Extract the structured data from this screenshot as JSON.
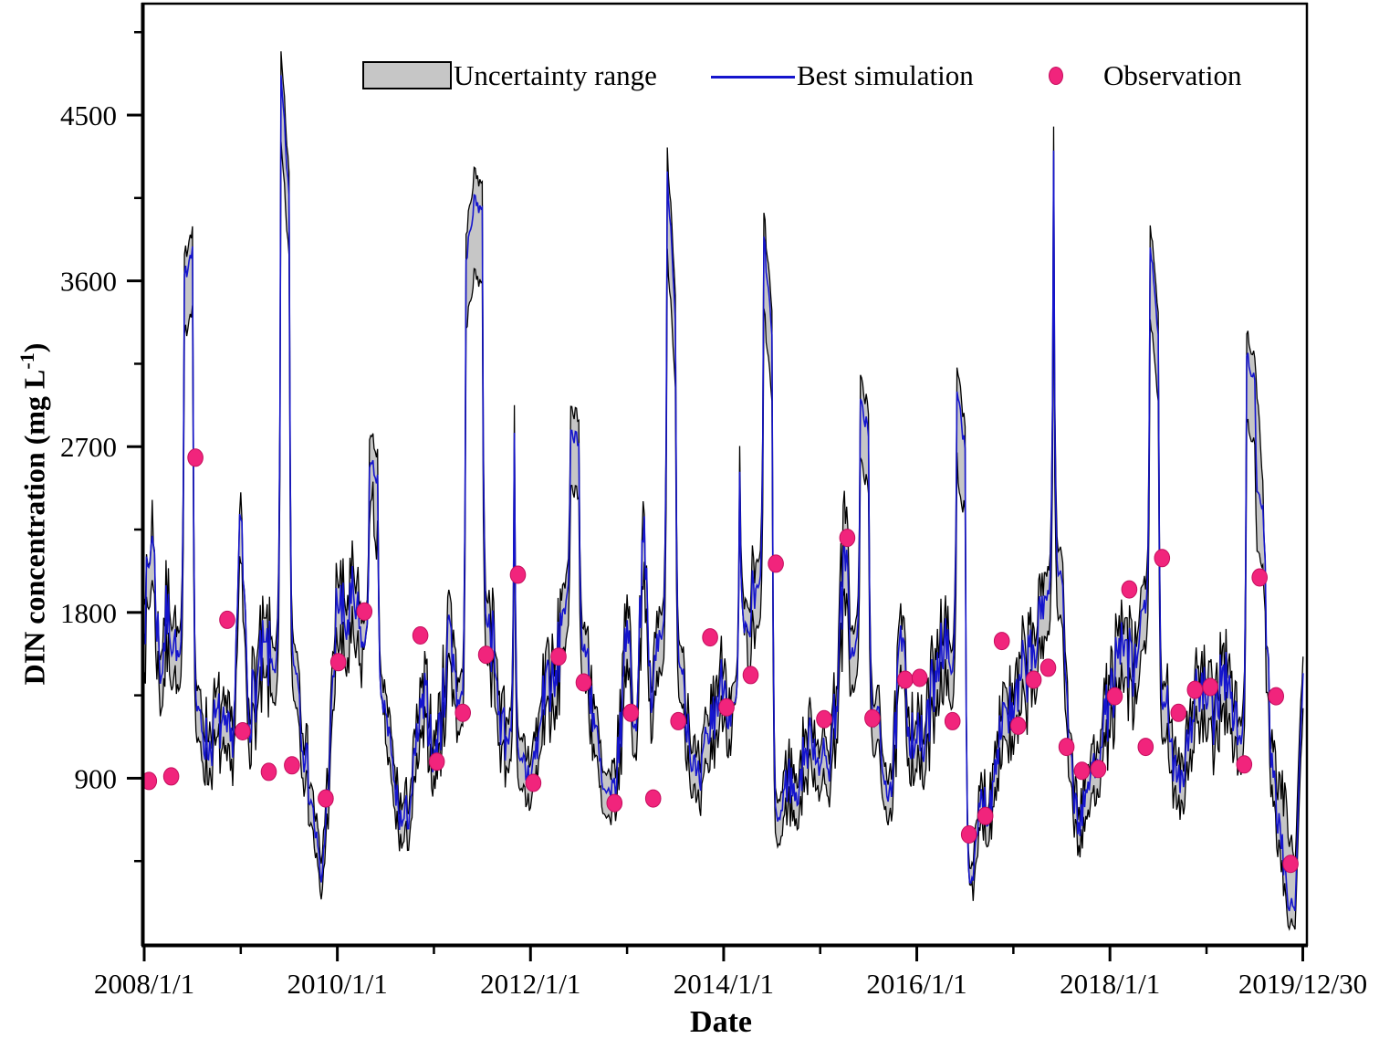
{
  "chart_data": {
    "type": "line",
    "title": "",
    "xlabel": "Date",
    "ylabel": {
      "prefix": "DIN concentration (mg L",
      "superscript": "-1",
      "suffix": ")"
    },
    "legend_position": "top",
    "grid": false,
    "xlim": [
      2008.0,
      2020.03
    ],
    "ylim": [
      0,
      5100
    ],
    "x_ticks": [
      {
        "t": 2008.0,
        "label": "2008/1/1"
      },
      {
        "t": 2010.0,
        "label": "2010/1/1"
      },
      {
        "t": 2012.0,
        "label": "2012/1/1"
      },
      {
        "t": 2014.0,
        "label": "2014/1/1"
      },
      {
        "t": 2016.0,
        "label": "2016/1/1"
      },
      {
        "t": 2018.0,
        "label": "2018/1/1"
      },
      {
        "t": 2019.997,
        "label": "2019/12/30"
      }
    ],
    "x_minor_ticks": [
      2009,
      2011,
      2013,
      2015,
      2017,
      2019
    ],
    "y_ticks": [
      900,
      1800,
      2700,
      3600,
      4500
    ],
    "y_minor_ticks": [
      450,
      1350,
      2250,
      3150,
      4050,
      4950
    ],
    "legend": [
      {
        "label": "Uncertainty range",
        "type": "band",
        "fill": "#c6c6c6",
        "stroke": "#000000"
      },
      {
        "label": "Best simulation",
        "type": "line",
        "color": "#1515cd"
      },
      {
        "label": "Observation",
        "type": "point",
        "color": "#f1247c"
      }
    ],
    "series_monthly": {
      "t_start": 2008.0,
      "t_step_years": 0.0833333,
      "units": "mg L-1",
      "best_simulation": [
        1750,
        2250,
        1450,
        1850,
        1550,
        3620,
        3800,
        1250,
        1030,
        1240,
        1140,
        1060,
        2300,
        1250,
        1420,
        1600,
        1500,
        4700,
        4060,
        1500,
        1020,
        720,
        320,
        950,
        1880,
        1700,
        1860,
        1620,
        2600,
        2540,
        1280,
        880,
        640,
        740,
        1120,
        1350,
        1020,
        1240,
        1780,
        1320,
        3700,
        4050,
        3990,
        1750,
        1280,
        1120,
        2780,
        980,
        900,
        1120,
        1500,
        1340,
        1820,
        2800,
        2730,
        1580,
        1180,
        820,
        760,
        1010,
        1800,
        1150,
        2250,
        1280,
        1700,
        4200,
        3380,
        1500,
        980,
        840,
        1120,
        1300,
        1420,
        1280,
        2550,
        1700,
        1920,
        3830,
        3310,
        680,
        920,
        800,
        1010,
        1120,
        1000,
        960,
        1320,
        2120,
        1600,
        2950,
        2760,
        1220,
        900,
        860,
        1680,
        1190,
        1120,
        1060,
        1420,
        1700,
        1520,
        3000,
        2700,
        340,
        820,
        700,
        1100,
        1310,
        1200,
        1430,
        1560,
        1620,
        1900,
        4300,
        2000,
        1080,
        620,
        800,
        1000,
        1120,
        1320,
        1520,
        1620,
        1400,
        1820,
        3780,
        3300,
        1280,
        1000,
        920,
        1210,
        1400,
        1300,
        1210,
        1540,
        1310,
        1120,
        3200,
        3060,
        2400,
        950,
        680,
        260,
        180,
        1470
      ],
      "uncertainty_upper": [
        1890,
        2420,
        1580,
        1990,
        1680,
        3730,
        3910,
        1360,
        1130,
        1350,
        1240,
        1170,
        2450,
        1360,
        1540,
        1730,
        1620,
        4830,
        4180,
        1620,
        1120,
        810,
        420,
        1060,
        2020,
        1830,
        2000,
        1750,
        2750,
        2680,
        1390,
        970,
        730,
        830,
        1220,
        1460,
        1120,
        1350,
        1920,
        1440,
        3840,
        4200,
        4130,
        1880,
        1390,
        1230,
        2930,
        1090,
        1000,
        1220,
        1620,
        1450,
        1960,
        2930,
        2860,
        1700,
        1280,
        910,
        860,
        1120,
        1940,
        1260,
        2420,
        1390,
        1830,
        4330,
        3510,
        1620,
        1080,
        940,
        1220,
        1410,
        1540,
        1390,
        2690,
        1830,
        2060,
        3960,
        3440,
        780,
        1020,
        900,
        1110,
        1220,
        1100,
        1060,
        1430,
        2400,
        1720,
        3080,
        2880,
        1330,
        1000,
        960,
        1800,
        1300,
        1220,
        1160,
        1540,
        1830,
        1640,
        3130,
        2820,
        420,
        910,
        790,
        1200,
        1420,
        1300,
        1550,
        1680,
        1740,
        2030,
        4430,
        2130,
        1180,
        700,
        890,
        1100,
        1220,
        1430,
        1640,
        1740,
        1510,
        1950,
        3900,
        3420,
        1390,
        1100,
        1010,
        1310,
        1510,
        1410,
        1310,
        1660,
        1420,
        1220,
        3320,
        3180,
        2520,
        1050,
        900,
        700,
        420,
        1560
      ],
      "uncertainty_lower": [
        1540,
        2010,
        1270,
        1640,
        1370,
        3300,
        3480,
        1080,
        890,
        1090,
        990,
        900,
        2060,
        1090,
        1250,
        1410,
        1320,
        4340,
        3730,
        1310,
        880,
        600,
        230,
        810,
        1660,
        1500,
        1640,
        1430,
        2330,
        2270,
        1110,
        740,
        520,
        610,
        970,
        1180,
        880,
        1080,
        1570,
        1150,
        3330,
        3650,
        3590,
        1540,
        1110,
        960,
        2470,
        820,
        760,
        970,
        1310,
        1160,
        1610,
        2500,
        2440,
        1380,
        1020,
        690,
        620,
        860,
        1590,
        990,
        1990,
        1110,
        1500,
        3780,
        3010,
        1310,
        830,
        700,
        960,
        1120,
        1240,
        1110,
        2270,
        1490,
        1700,
        3440,
        2950,
        540,
        780,
        660,
        860,
        960,
        850,
        810,
        1140,
        1870,
        1400,
        2630,
        2450,
        1050,
        760,
        720,
        1470,
        1020,
        960,
        900,
        1230,
        1490,
        1320,
        2670,
        2390,
        230,
        690,
        580,
        940,
        1130,
        1030,
        1240,
        1360,
        1410,
        1680,
        3860,
        1760,
        910,
        500,
        660,
        830,
        960,
        1140,
        1320,
        1420,
        1210,
        1600,
        3390,
        2940,
        1090,
        840,
        760,
        1040,
        1210,
        1120,
        1030,
        1330,
        1120,
        950,
        2840,
        2710,
        2080,
        790,
        540,
        150,
        80,
        1280
      ]
    },
    "observations": [
      [
        2008.05,
        885
      ],
      [
        2008.28,
        910
      ],
      [
        2008.53,
        2640
      ],
      [
        2008.86,
        1760
      ],
      [
        2009.02,
        1155
      ],
      [
        2009.29,
        935
      ],
      [
        2009.53,
        970
      ],
      [
        2009.88,
        790
      ],
      [
        2010.01,
        1530
      ],
      [
        2010.28,
        1805
      ],
      [
        2010.86,
        1675
      ],
      [
        2011.03,
        990
      ],
      [
        2011.3,
        1255
      ],
      [
        2011.54,
        1570
      ],
      [
        2011.87,
        2005
      ],
      [
        2012.03,
        875
      ],
      [
        2012.29,
        1560
      ],
      [
        2012.55,
        1420
      ],
      [
        2012.87,
        765
      ],
      [
        2013.04,
        1255
      ],
      [
        2013.27,
        790
      ],
      [
        2013.53,
        1210
      ],
      [
        2013.86,
        1665
      ],
      [
        2014.03,
        1285
      ],
      [
        2014.28,
        1460
      ],
      [
        2014.54,
        2065
      ],
      [
        2015.04,
        1220
      ],
      [
        2015.28,
        2205
      ],
      [
        2015.54,
        1225
      ],
      [
        2015.88,
        1435
      ],
      [
        2016.03,
        1445
      ],
      [
        2016.37,
        1210
      ],
      [
        2016.54,
        595
      ],
      [
        2016.71,
        695
      ],
      [
        2016.88,
        1645
      ],
      [
        2017.05,
        1185
      ],
      [
        2017.21,
        1435
      ],
      [
        2017.36,
        1500
      ],
      [
        2017.55,
        1070
      ],
      [
        2017.71,
        940
      ],
      [
        2017.88,
        950
      ],
      [
        2018.05,
        1345
      ],
      [
        2018.2,
        1925
      ],
      [
        2018.37,
        1070
      ],
      [
        2018.54,
        2095
      ],
      [
        2018.71,
        1255
      ],
      [
        2018.88,
        1380
      ],
      [
        2019.04,
        1395
      ],
      [
        2019.39,
        975
      ],
      [
        2019.55,
        1990
      ],
      [
        2019.72,
        1345
      ],
      [
        2019.87,
        435
      ]
    ]
  }
}
